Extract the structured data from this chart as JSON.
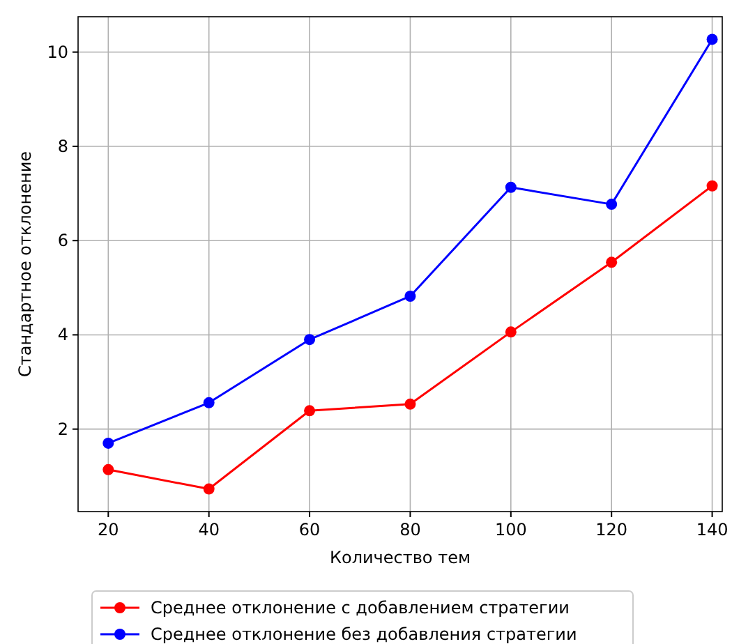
{
  "chart_data": {
    "type": "line",
    "xlabel": "Количество тем",
    "ylabel": "Стандартное отклонение",
    "x": [
      20,
      40,
      60,
      80,
      100,
      120,
      140
    ],
    "series": [
      {
        "name": "Среднее отклонение с добавлением стратегии",
        "color": "#ff0000",
        "values": [
          1.14,
          0.73,
          2.39,
          2.53,
          4.06,
          5.54,
          7.16
        ]
      },
      {
        "name": "Среднее отклонение без добавления стратегии",
        "color": "#0000ff",
        "values": [
          1.7,
          2.56,
          3.9,
          4.82,
          7.13,
          6.77,
          10.27
        ]
      }
    ],
    "xlim": [
      14,
      142
    ],
    "xticks": [
      20,
      40,
      60,
      80,
      100,
      120,
      140
    ],
    "ylim": [
      0.25,
      10.75
    ],
    "yticks": [
      2,
      4,
      6,
      8,
      10
    ],
    "grid": true,
    "legend": "bottom",
    "marker": "circle",
    "line_style": "solid"
  }
}
